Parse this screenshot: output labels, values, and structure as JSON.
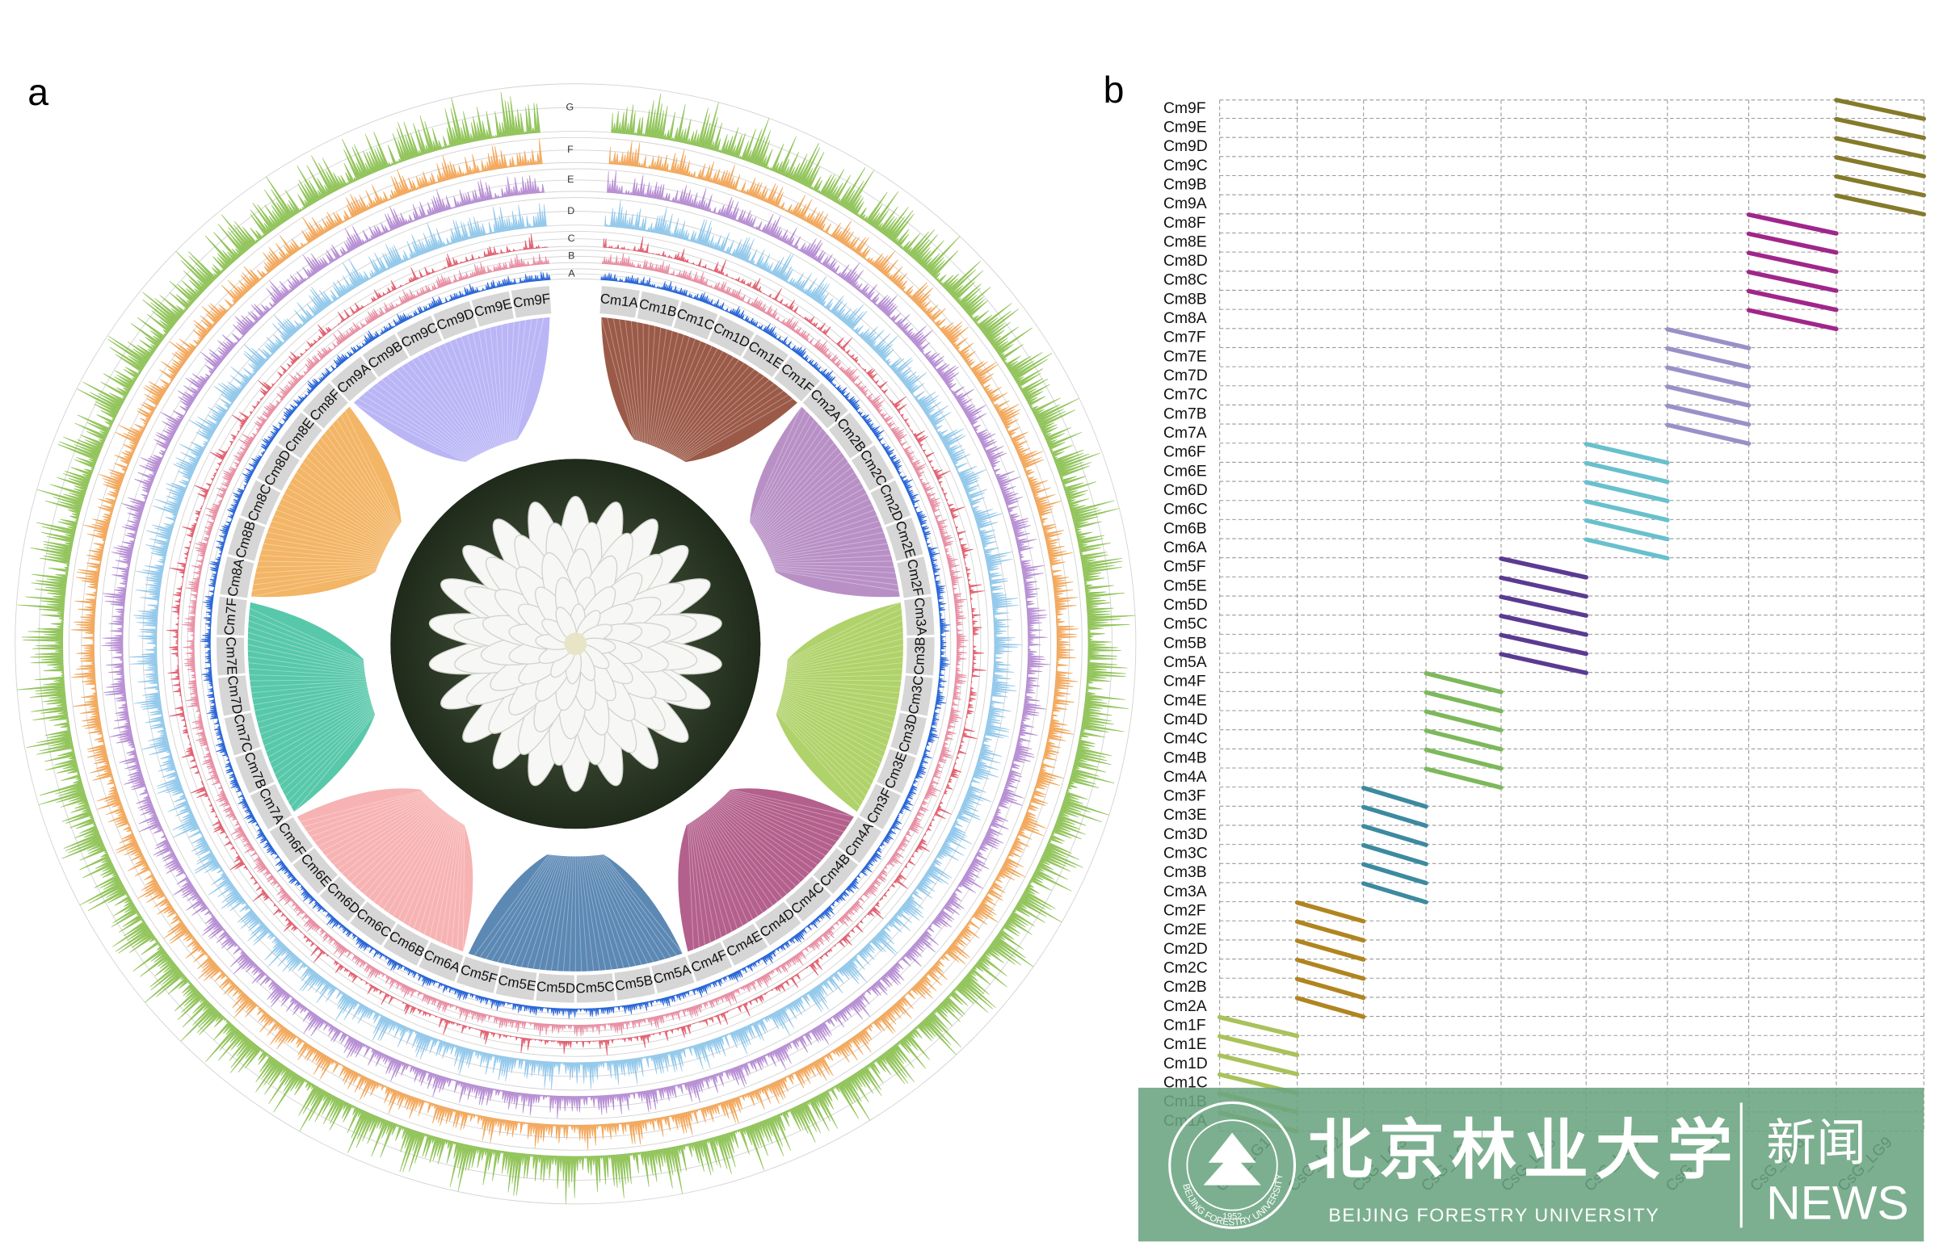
{
  "panel_a": {
    "label": "a",
    "track_labels": [
      "A",
      "B",
      "C",
      "D",
      "E",
      "F",
      "G"
    ],
    "track_colors": [
      "#1f5fd6",
      "#e88aa0",
      "#e05a6a",
      "#8ec6ea",
      "#b48ad2",
      "#f2a455",
      "#8cc152"
    ],
    "chromosomes": [
      "Cm1A",
      "Cm1B",
      "Cm1C",
      "Cm1D",
      "Cm1E",
      "Cm1F",
      "Cm2A",
      "Cm2B",
      "Cm2C",
      "Cm2D",
      "Cm2E",
      "Cm2F",
      "Cm3A",
      "Cm3B",
      "Cm3C",
      "Cm3D",
      "Cm3E",
      "Cm3F",
      "Cm4A",
      "Cm4B",
      "Cm4C",
      "Cm4D",
      "Cm4E",
      "Cm4F",
      "Cm5A",
      "Cm5B",
      "Cm5C",
      "Cm5D",
      "Cm5E",
      "Cm5F",
      "Cm6A",
      "Cm6B",
      "Cm6C",
      "Cm6D",
      "Cm6E",
      "Cm6F",
      "Cm7A",
      "Cm7B",
      "Cm7C",
      "Cm7D",
      "Cm7E",
      "Cm7F",
      "Cm8A",
      "Cm8B",
      "Cm8C",
      "Cm8D",
      "Cm8E",
      "Cm8F",
      "Cm9A",
      "Cm9B",
      "Cm9C",
      "Cm9D",
      "Cm9E",
      "Cm9F"
    ],
    "group_colors": [
      "#9b5a48",
      "#b890c6",
      "#b0d26a",
      "#b4608c",
      "#5c88b4",
      "#f7b3b3",
      "#58c8aa",
      "#f3b566",
      "#bab6f6"
    ]
  },
  "panel_b": {
    "label": "b",
    "chromosomes": [
      "Cm1A",
      "Cm1B",
      "Cm1C",
      "Cm1D",
      "Cm1E",
      "Cm1F",
      "Cm2A",
      "Cm2B",
      "Cm2C",
      "Cm2D",
      "Cm2E",
      "Cm2F",
      "Cm3A",
      "Cm3B",
      "Cm3C",
      "Cm3D",
      "Cm3E",
      "Cm3F",
      "Cm4A",
      "Cm4B",
      "Cm4C",
      "Cm4D",
      "Cm4E",
      "Cm4F",
      "Cm5A",
      "Cm5B",
      "Cm5C",
      "Cm5D",
      "Cm5E",
      "Cm5F",
      "Cm6A",
      "Cm6B",
      "Cm6C",
      "Cm6D",
      "Cm6E",
      "Cm6F",
      "Cm7A",
      "Cm7B",
      "Cm7C",
      "Cm7D",
      "Cm7E",
      "Cm7F",
      "Cm8A",
      "Cm8B",
      "Cm8C",
      "Cm8D",
      "Cm8E",
      "Cm8F",
      "Cm9A",
      "Cm9B",
      "Cm9C",
      "Cm9D",
      "Cm9E",
      "Cm9F"
    ],
    "linkage_groups": [
      "CsG_LG1",
      "CsG_LG2",
      "CsG_LG3",
      "CsG_LG4",
      "CsG_LG5",
      "CsG_LG6",
      "CsG_LG7",
      "CsG_LG8",
      "CsG_LG9"
    ],
    "group_colors": [
      "#a9c25a",
      "#b08520",
      "#3c8aa0",
      "#7db85c",
      "#5b3a92",
      "#68c0cc",
      "#9a90c8",
      "#a0268a",
      "#857a2a"
    ]
  },
  "watermark": {
    "university_cn": "北京林业大学",
    "university_en": "BEIJING FORESTRY UNIVERSITY",
    "seal_text": "BEIJING FORESTRY UNIVERSITY",
    "seal_year": "1952",
    "news_cn": "新闻",
    "news_en": "NEWS"
  }
}
